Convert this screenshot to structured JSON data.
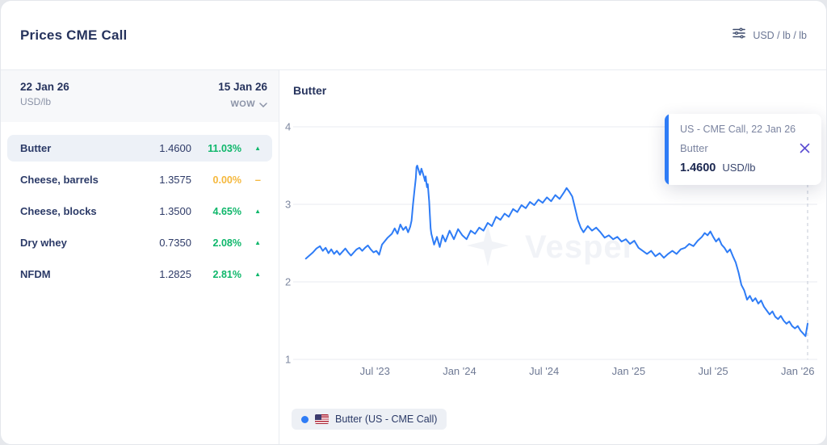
{
  "header": {
    "title": "Prices CME Call",
    "unit_selector": "USD / lb / lb"
  },
  "table": {
    "date_col": "22 Jan 26",
    "unit": "USD/lb",
    "compare_col": "15 Jan 26",
    "compare_mode": "WOW",
    "rows": [
      {
        "name": "Butter",
        "value": "1.4600",
        "change": "11.03%",
        "direction": "up",
        "selected": true
      },
      {
        "name": "Cheese, barrels",
        "value": "1.3575",
        "change": "0.00%",
        "direction": "flat",
        "selected": false
      },
      {
        "name": "Cheese, blocks",
        "value": "1.3500",
        "change": "4.65%",
        "direction": "up",
        "selected": false
      },
      {
        "name": "Dry whey",
        "value": "0.7350",
        "change": "2.08%",
        "direction": "up",
        "selected": false
      },
      {
        "name": "NFDM",
        "value": "1.2825",
        "change": "2.81%",
        "direction": "up",
        "selected": false
      }
    ]
  },
  "icons": {
    "up": "▲",
    "flat": "–"
  },
  "chart": {
    "title": "Butter",
    "watermark": "Vesper",
    "legend_label": "Butter (US - CME Call)"
  },
  "tooltip": {
    "line1": "US - CME Call, 22 Jan 26",
    "series": "Butter",
    "value": "1.4600",
    "unit": "USD/lb"
  },
  "colors": {
    "line_blue": "#2e7cf6",
    "green_up": "#0fb76b",
    "yellow_flat": "#f5b83d",
    "navy_text": "#26335d",
    "grid": "#e9ebf1",
    "dashed_marker": "#c3c9d6"
  },
  "chart_data": {
    "type": "line",
    "title": "Butter",
    "unit": "USD/lb",
    "ylim": [
      1,
      4
    ],
    "y_ticks": [
      1,
      2,
      3,
      4
    ],
    "x_range": [
      0,
      35.7
    ],
    "x_axis_note": "x = months since Feb 2023, weekly prices",
    "x_ticks": [
      {
        "m": 5,
        "label": "Jul '23"
      },
      {
        "m": 11,
        "label": "Jan '24"
      },
      {
        "m": 17,
        "label": "Jul '24"
      },
      {
        "m": 23,
        "label": "Jan '25"
      },
      {
        "m": 29,
        "label": "Jul '25"
      },
      {
        "m": 35,
        "label": "Jan '26"
      }
    ],
    "grid": true,
    "legend_position": "bottom",
    "last_point_dashed_marker": true,
    "series": [
      {
        "name": "Butter (US - CME Call)",
        "color": "#2e7cf6",
        "last_value": 1.46,
        "points": [
          [
            0.1,
            2.3
          ],
          [
            0.35,
            2.34
          ],
          [
            0.6,
            2.38
          ],
          [
            0.85,
            2.43
          ],
          [
            1.1,
            2.46
          ],
          [
            1.3,
            2.4
          ],
          [
            1.5,
            2.44
          ],
          [
            1.7,
            2.37
          ],
          [
            1.9,
            2.42
          ],
          [
            2.1,
            2.36
          ],
          [
            2.3,
            2.4
          ],
          [
            2.5,
            2.35
          ],
          [
            2.7,
            2.39
          ],
          [
            2.9,
            2.43
          ],
          [
            3.1,
            2.38
          ],
          [
            3.3,
            2.34
          ],
          [
            3.5,
            2.38
          ],
          [
            3.7,
            2.42
          ],
          [
            3.9,
            2.44
          ],
          [
            4.1,
            2.4
          ],
          [
            4.3,
            2.44
          ],
          [
            4.5,
            2.47
          ],
          [
            4.7,
            2.42
          ],
          [
            4.9,
            2.38
          ],
          [
            5.1,
            2.4
          ],
          [
            5.3,
            2.35
          ],
          [
            5.5,
            2.48
          ],
          [
            5.9,
            2.57
          ],
          [
            6.2,
            2.62
          ],
          [
            6.4,
            2.69
          ],
          [
            6.6,
            2.62
          ],
          [
            6.8,
            2.74
          ],
          [
            7.0,
            2.67
          ],
          [
            7.2,
            2.71
          ],
          [
            7.35,
            2.64
          ],
          [
            7.5,
            2.71
          ],
          [
            7.6,
            2.79
          ],
          [
            7.7,
            3.0
          ],
          [
            7.8,
            3.17
          ],
          [
            7.9,
            3.34
          ],
          [
            7.95,
            3.48
          ],
          [
            8.0,
            3.5
          ],
          [
            8.1,
            3.44
          ],
          [
            8.2,
            3.38
          ],
          [
            8.3,
            3.46
          ],
          [
            8.4,
            3.4
          ],
          [
            8.5,
            3.34
          ],
          [
            8.55,
            3.3
          ],
          [
            8.6,
            3.36
          ],
          [
            8.65,
            3.27
          ],
          [
            8.7,
            3.22
          ],
          [
            8.75,
            3.26
          ],
          [
            8.8,
            3.14
          ],
          [
            8.85,
            3.04
          ],
          [
            8.9,
            2.86
          ],
          [
            8.95,
            2.69
          ],
          [
            9.0,
            2.62
          ],
          [
            9.2,
            2.48
          ],
          [
            9.4,
            2.58
          ],
          [
            9.6,
            2.45
          ],
          [
            9.8,
            2.6
          ],
          [
            10.0,
            2.52
          ],
          [
            10.3,
            2.66
          ],
          [
            10.6,
            2.55
          ],
          [
            10.9,
            2.68
          ],
          [
            11.2,
            2.6
          ],
          [
            11.5,
            2.55
          ],
          [
            11.8,
            2.66
          ],
          [
            12.1,
            2.62
          ],
          [
            12.4,
            2.7
          ],
          [
            12.7,
            2.66
          ],
          [
            13.0,
            2.76
          ],
          [
            13.3,
            2.72
          ],
          [
            13.6,
            2.84
          ],
          [
            13.9,
            2.8
          ],
          [
            14.2,
            2.88
          ],
          [
            14.5,
            2.84
          ],
          [
            14.8,
            2.94
          ],
          [
            15.1,
            2.9
          ],
          [
            15.4,
            2.99
          ],
          [
            15.7,
            2.95
          ],
          [
            16.0,
            3.03
          ],
          [
            16.3,
            2.99
          ],
          [
            16.6,
            3.06
          ],
          [
            16.9,
            3.02
          ],
          [
            17.2,
            3.09
          ],
          [
            17.5,
            3.04
          ],
          [
            17.8,
            3.12
          ],
          [
            18.1,
            3.07
          ],
          [
            18.4,
            3.15
          ],
          [
            18.6,
            3.21
          ],
          [
            18.8,
            3.16
          ],
          [
            19.0,
            3.1
          ],
          [
            19.2,
            2.95
          ],
          [
            19.4,
            2.8
          ],
          [
            19.6,
            2.7
          ],
          [
            19.8,
            2.64
          ],
          [
            20.1,
            2.72
          ],
          [
            20.4,
            2.66
          ],
          [
            20.7,
            2.7
          ],
          [
            21.0,
            2.64
          ],
          [
            21.3,
            2.57
          ],
          [
            21.6,
            2.6
          ],
          [
            21.9,
            2.55
          ],
          [
            22.2,
            2.58
          ],
          [
            22.5,
            2.52
          ],
          [
            22.8,
            2.55
          ],
          [
            23.1,
            2.49
          ],
          [
            23.4,
            2.53
          ],
          [
            23.7,
            2.44
          ],
          [
            24.0,
            2.4
          ],
          [
            24.3,
            2.36
          ],
          [
            24.6,
            2.4
          ],
          [
            24.9,
            2.33
          ],
          [
            25.2,
            2.37
          ],
          [
            25.5,
            2.31
          ],
          [
            25.8,
            2.36
          ],
          [
            26.1,
            2.4
          ],
          [
            26.4,
            2.36
          ],
          [
            26.7,
            2.42
          ],
          [
            27.0,
            2.44
          ],
          [
            27.3,
            2.49
          ],
          [
            27.6,
            2.46
          ],
          [
            27.9,
            2.53
          ],
          [
            28.2,
            2.58
          ],
          [
            28.4,
            2.63
          ],
          [
            28.6,
            2.6
          ],
          [
            28.8,
            2.65
          ],
          [
            29.0,
            2.58
          ],
          [
            29.2,
            2.52
          ],
          [
            29.4,
            2.56
          ],
          [
            29.6,
            2.48
          ],
          [
            29.8,
            2.44
          ],
          [
            30.0,
            2.38
          ],
          [
            30.2,
            2.42
          ],
          [
            30.4,
            2.33
          ],
          [
            30.6,
            2.25
          ],
          [
            30.8,
            2.12
          ],
          [
            31.0,
            1.96
          ],
          [
            31.2,
            1.89
          ],
          [
            31.4,
            1.77
          ],
          [
            31.6,
            1.82
          ],
          [
            31.8,
            1.75
          ],
          [
            32.0,
            1.79
          ],
          [
            32.2,
            1.72
          ],
          [
            32.4,
            1.76
          ],
          [
            32.6,
            1.68
          ],
          [
            32.8,
            1.63
          ],
          [
            33.0,
            1.58
          ],
          [
            33.2,
            1.62
          ],
          [
            33.4,
            1.55
          ],
          [
            33.6,
            1.52
          ],
          [
            33.8,
            1.56
          ],
          [
            34.0,
            1.5
          ],
          [
            34.2,
            1.46
          ],
          [
            34.4,
            1.49
          ],
          [
            34.6,
            1.43
          ],
          [
            34.8,
            1.4
          ],
          [
            35.0,
            1.43
          ],
          [
            35.2,
            1.37
          ],
          [
            35.4,
            1.33
          ],
          [
            35.55,
            1.3
          ],
          [
            35.7,
            1.46
          ]
        ]
      }
    ]
  }
}
